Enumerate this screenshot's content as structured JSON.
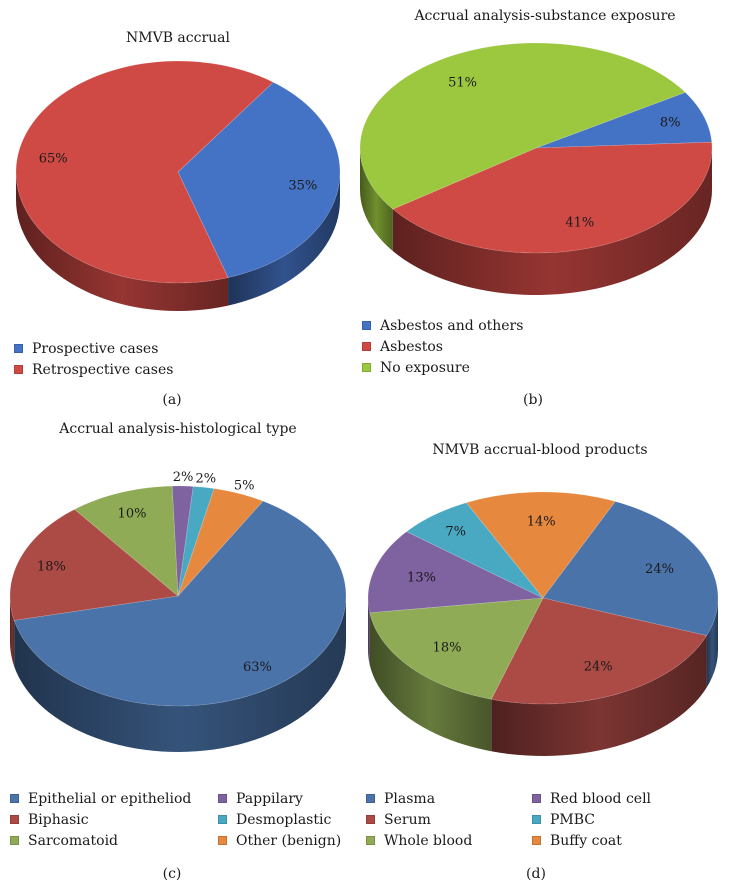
{
  "colors": {
    "blue": "#4472c4",
    "red": "#c0504d",
    "green": "#9bbb59",
    "purple": "#8064a2",
    "teal": "#4bacc6",
    "orange": "#f79646"
  },
  "chart_data": [
    {
      "id": "a",
      "type": "pie",
      "style": "3d",
      "title": "NMVB accrual",
      "panel_label": "(a)",
      "categories": [
        "Prospective cases",
        "Retrospective cases"
      ],
      "values": [
        35,
        65
      ],
      "labels": [
        "35%",
        "65%"
      ],
      "colors": [
        "#4472c4",
        "#d04a45"
      ],
      "legend": [
        {
          "label": "Prospective cases",
          "color": "#4472c4"
        },
        {
          "label": "Retrospective cases",
          "color": "#d04a45"
        }
      ]
    },
    {
      "id": "b",
      "type": "pie",
      "style": "3d",
      "title": "Accrual analysis-substance exposure",
      "panel_label": "(b)",
      "categories": [
        "Asbestos and others",
        "Asbestos",
        "No exposure"
      ],
      "values": [
        8,
        41,
        51
      ],
      "labels": [
        "8%",
        "41%",
        "51%"
      ],
      "colors": [
        "#4472c4",
        "#d04a45",
        "#9cc83f"
      ],
      "legend": [
        {
          "label": "Asbestos and others",
          "color": "#4472c4"
        },
        {
          "label": "Asbestos",
          "color": "#d04a45"
        },
        {
          "label": "No exposure",
          "color": "#9cc83f"
        }
      ]
    },
    {
      "id": "c",
      "type": "pie",
      "style": "3d",
      "title": "Accrual analysis-histological type",
      "panel_label": "(c)",
      "categories": [
        "Pappilary",
        "Desmoplastic",
        "Other (benign)",
        "Epithelial or epitheliod",
        "Biphasic",
        "Sarcomatoid"
      ],
      "values": [
        2,
        2,
        5,
        63,
        18,
        10
      ],
      "labels": [
        "2%",
        "2%",
        "5%",
        "63%",
        "18%",
        "10%"
      ],
      "colors": [
        "#7f62a0",
        "#4aa9c2",
        "#e7883f",
        "#4a73aa",
        "#ac4a46",
        "#8fab55"
      ],
      "legend": [
        {
          "label": "Epithelial or epitheliod",
          "color": "#4a73aa"
        },
        {
          "label": "Biphasic",
          "color": "#ac4a46"
        },
        {
          "label": "Sarcomatoid",
          "color": "#8fab55"
        },
        {
          "label": "Pappilary",
          "color": "#7f62a0"
        },
        {
          "label": "Desmoplastic",
          "color": "#4aa9c2"
        },
        {
          "label": "Other (benign)",
          "color": "#e7883f"
        }
      ]
    },
    {
      "id": "d",
      "type": "pie",
      "style": "3d",
      "title": "NMVB accrual-blood products",
      "panel_label": "(d)",
      "categories": [
        "Buffy coat",
        "Plasma",
        "Serum",
        "Whole blood",
        "Red blood cell",
        "PMBC"
      ],
      "values": [
        14,
        24,
        24,
        18,
        13,
        7
      ],
      "labels": [
        "14%",
        "24%",
        "24%",
        "18%",
        "13%",
        "7%"
      ],
      "colors": [
        "#e7883f",
        "#4a73aa",
        "#ac4a46",
        "#8fab55",
        "#7f62a0",
        "#4aa9c2"
      ],
      "legend": [
        {
          "label": "Plasma",
          "color": "#4a73aa"
        },
        {
          "label": "Serum",
          "color": "#ac4a46"
        },
        {
          "label": "Whole blood",
          "color": "#8fab55"
        },
        {
          "label": "Red blood cell",
          "color": "#7f62a0"
        },
        {
          "label": "PMBC",
          "color": "#4aa9c2"
        },
        {
          "label": "Buffy coat",
          "color": "#e7883f"
        }
      ]
    }
  ]
}
